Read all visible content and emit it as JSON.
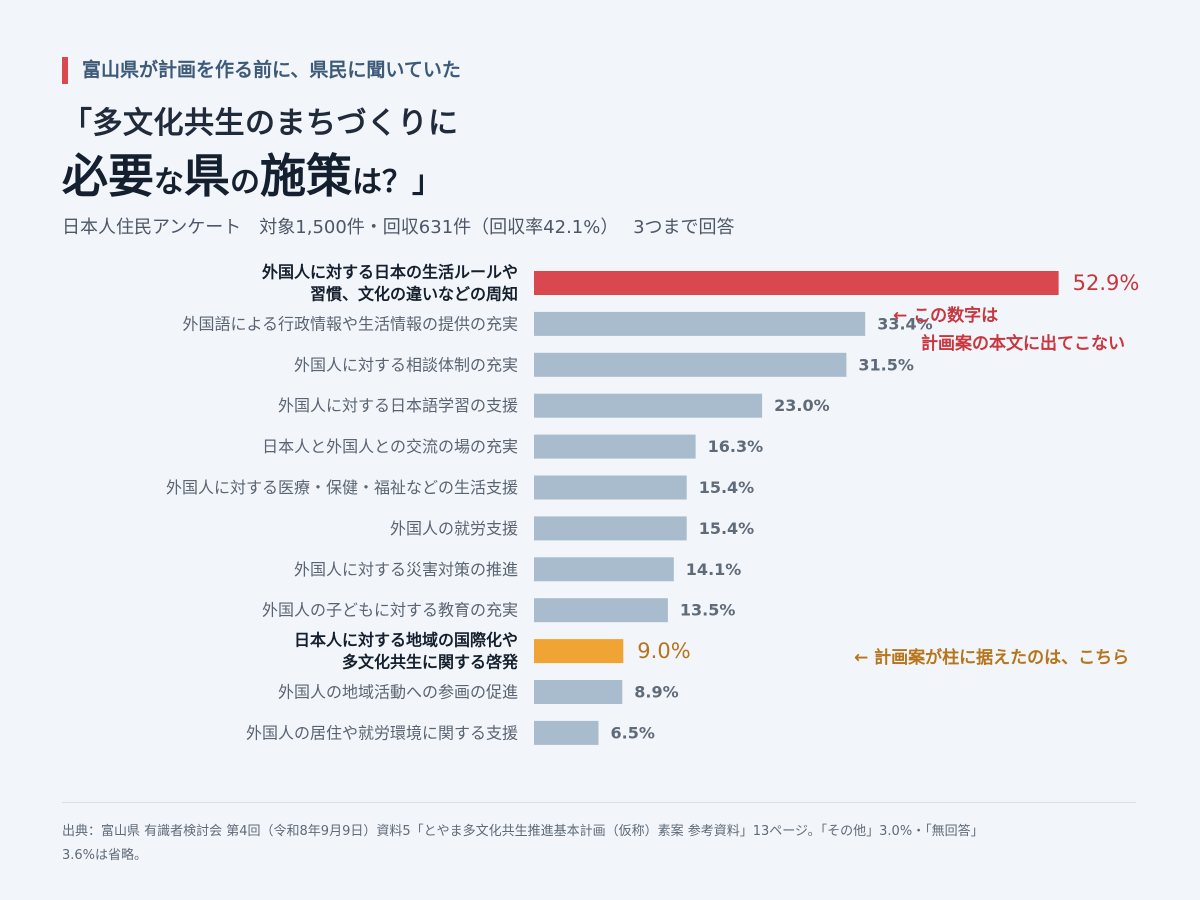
{
  "header": {
    "kicker": "富山県が計画を作る前に、県民に聞いていた",
    "title_line1": "「多文化共生のまちづくりに",
    "title_line2_parts": [
      {
        "text": "必要",
        "size": "big"
      },
      {
        "text": "な",
        "size": "small"
      },
      {
        "text": "県",
        "size": "big"
      },
      {
        "text": "の",
        "size": "small"
      },
      {
        "text": "施策",
        "size": "big"
      },
      {
        "text": "は？」",
        "size": "small"
      }
    ],
    "subtitle": "日本人住民アンケート　対象1,500件・回収631件（回収率42.1%）　 3つまで回答"
  },
  "colors": {
    "highlight_red": "#d9474f",
    "highlight_orange": "#efa433",
    "default_bar": "#a9bccd",
    "red_text": "#c8363f",
    "orange_text": "#b7741b"
  },
  "chart_data": {
    "type": "bar",
    "orientation": "horizontal",
    "unit": "%",
    "xlim": [
      0,
      60
    ],
    "categories": [
      [
        "外国人に対する日本の生活ルールや",
        "習慣、文化の違いなどの周知"
      ],
      [
        "外国語による行政情報や生活情報の提供の充実"
      ],
      [
        "外国人に対する相談体制の充実"
      ],
      [
        "外国人に対する日本語学習の支援"
      ],
      [
        "日本人と外国人との交流の場の充実"
      ],
      [
        "外国人に対する医療・保健・福祉などの生活支援"
      ],
      [
        "外国人の就労支援"
      ],
      [
        "外国人に対する災害対策の推進"
      ],
      [
        "外国人の子どもに対する教育の充実"
      ],
      [
        "日本人に対する地域の国際化や",
        "多文化共生に関する啓発"
      ],
      [
        "外国人の地域活動への参画の促進"
      ],
      [
        "外国人の居住や就労環境に関する支援"
      ]
    ],
    "values": [
      52.9,
      33.4,
      31.5,
      23.0,
      16.3,
      15.4,
      15.4,
      14.1,
      13.5,
      9.0,
      8.9,
      6.5
    ],
    "value_labels": [
      "52.9%",
      "33.4%",
      "31.5%",
      "23.0%",
      "16.3%",
      "15.4%",
      "15.4%",
      "14.1%",
      "13.5%",
      "9.0%",
      "8.9%",
      "6.5%"
    ],
    "highlight": [
      "red",
      null,
      null,
      null,
      null,
      null,
      null,
      null,
      null,
      "orange",
      null,
      null
    ],
    "annotations": [
      {
        "target": 0,
        "lines": [
          "← この数字は",
          "計画案の本文に出てこない"
        ],
        "color": "red"
      },
      {
        "target": 9,
        "lines": [
          "← 計画案が柱に据えたのは、こちら"
        ],
        "color": "orange"
      }
    ]
  },
  "footer": {
    "source_line1": "出典：富山県 有識者検討会 第4回（令和8年9月9日）資料5「とやま多文化共生推進基本計画（仮称）素案 参考資料」13ページ。「その他」3.0%・「無回答」",
    "source_line2": "3.6%は省略。"
  }
}
